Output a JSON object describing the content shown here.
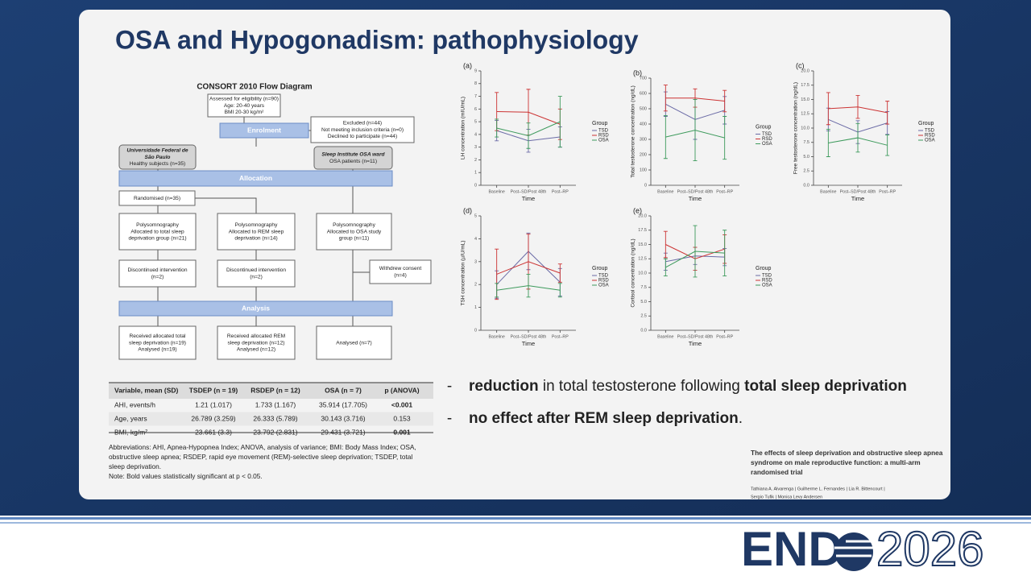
{
  "title": "OSA and Hypogonadism: pathophysiology",
  "flow": {
    "title": "CONSORT 2010 Flow Diagram",
    "nodes": [
      {
        "lines": [
          "Assessed for eligibility (n=90)",
          "Age: 20-40 years",
          "BMI 20-30 kg/m²"
        ]
      },
      {
        "lines": [
          "Enrolment"
        ]
      },
      {
        "lines": [
          "Excluded (n=44)",
          "Not meeting inclusion criteria (n=0)",
          "Declined to participate (n=44)"
        ]
      },
      {
        "lines": [
          "Universidade Federal de",
          "São Paulo",
          "Healthy subjects (n=35)"
        ]
      },
      {
        "lines": [
          "Sleep Institute OSA ward",
          "OSA patients (n=11)"
        ]
      },
      {
        "lines": [
          "Allocation"
        ]
      },
      {
        "lines": [
          "Randomised (n=35)"
        ]
      },
      {
        "lines": [
          "Polysomnography",
          "Allocated to total sleep",
          "deprivation group (n=21)"
        ]
      },
      {
        "lines": [
          "Polysomnography",
          "Allocated to REM sleep",
          "deprivation (n=14)"
        ]
      },
      {
        "lines": [
          "Polysomnography",
          "Allocated to OSA study",
          "group (n=11)"
        ]
      },
      {
        "lines": [
          "Discontinued intervention",
          "(n=2)"
        ]
      },
      {
        "lines": [
          "Discontinued intervention",
          "(n=2)"
        ]
      },
      {
        "lines": [
          "Withdrew consent",
          "(n=4)"
        ]
      },
      {
        "lines": [
          "Analysis"
        ]
      },
      {
        "lines": [
          "Received allocated total",
          "sleep deprivation (n=19)",
          "Analysed (n=19)"
        ]
      },
      {
        "lines": [
          "Received allocated REM",
          "sleep deprivation (n=12)",
          "Analysed (n=12)"
        ]
      },
      {
        "lines": [
          "Analysed (n=7)"
        ]
      }
    ]
  },
  "table": {
    "columns": [
      "Variable, mean (SD)",
      "TSDEP (n = 19)",
      "RSDEP (n = 12)",
      "OSA (n = 7)",
      "p (ANOVA)"
    ],
    "rows": [
      [
        "AHI, events/h",
        "1.21 (1.017)",
        "1.733 (1.167)",
        "35.914 (17.705)",
        "<0.001"
      ],
      [
        "Age, years",
        "26.789 (3.259)",
        "26.333 (5.789)",
        "30.143 (3.716)",
        "0.153"
      ],
      [
        "BMI, kg/m²",
        "23.661 (3.3)",
        "23.792 (2.831)",
        "29.431 (3.721)",
        "0.001"
      ]
    ],
    "abbreviations": [
      "Abbreviations: AHI, Apnea-Hypopnea Index; ANOVA, analysis of variance; BMI: Body Mass Index; OSA,",
      "obstructive sleep apnea; RSDEP, rapid eye movement (REM)-selective sleep deprivation; TSDEP, total",
      "sleep deprivation."
    ],
    "note": "Note: Bold values statistically significant at p < 0.05."
  },
  "charts": [
    {
      "type": "line",
      "panel": "(a)",
      "ylabel": "LH concentration (mIU/mL)",
      "xlabel": "Time",
      "categories": [
        "Baseline",
        "Post–SD/Post 48th",
        "Post–RP"
      ],
      "ylim": [
        0,
        9
      ],
      "yticks": [
        0,
        1,
        2,
        3,
        4,
        5,
        6,
        7,
        8,
        9
      ],
      "legend_title": "Group",
      "series": [
        {
          "name": "TSD",
          "color": "#6b6ba6",
          "values": [
            4.3,
            3.5,
            3.8
          ],
          "errors": [
            0.8,
            0.9,
            0.8
          ]
        },
        {
          "name": "RSD",
          "color": "#cc3333",
          "values": [
            5.8,
            5.75,
            4.8
          ],
          "errors": [
            1.5,
            1.8,
            1.2
          ]
        },
        {
          "name": "OSA",
          "color": "#3d9a5c",
          "values": [
            4.5,
            3.9,
            5.0
          ],
          "errors": [
            0.7,
            1.0,
            2.0
          ]
        }
      ]
    },
    {
      "type": "line",
      "panel": "(b)",
      "ylabel": "Total testosterone concentration (ng/dL)",
      "xlabel": "Time",
      "categories": [
        "Baseline",
        "Post–SD/Post 48th",
        "Post–RP"
      ],
      "ylim": [
        0,
        700
      ],
      "yticks": [
        0,
        100,
        200,
        300,
        400,
        500,
        600,
        700
      ],
      "legend_title": "Group",
      "series": [
        {
          "name": "TSD",
          "color": "#6b6ba6",
          "values": [
            530,
            430,
            490
          ],
          "errors": [
            80,
            130,
            90
          ]
        },
        {
          "name": "RSD",
          "color": "#cc3333",
          "values": [
            570,
            570,
            550
          ],
          "errors": [
            85,
            60,
            70
          ]
        },
        {
          "name": "OSA",
          "color": "#3d9a5c",
          "values": [
            315,
            360,
            310
          ],
          "errors": [
            140,
            200,
            140
          ]
        }
      ]
    },
    {
      "type": "line",
      "panel": "(c)",
      "ylabel": "Free testosterone concentration (ng/dL)",
      "xlabel": "Time",
      "categories": [
        "Baseline",
        "Post–SD/Post 48th",
        "Post–RP"
      ],
      "ylim": [
        0,
        20
      ],
      "yticks": [
        {
          "value": 0,
          "label": "0.0"
        },
        {
          "value": 2.5,
          "label": "2.5"
        },
        {
          "value": 5,
          "label": "5.0"
        },
        {
          "value": 7.5,
          "label": "7.5"
        },
        {
          "value": 10,
          "label": "10.0"
        },
        {
          "value": 12.5,
          "label": "12.5"
        },
        {
          "value": 15,
          "label": "15.0"
        },
        {
          "value": 17.5,
          "label": "17.5"
        },
        {
          "value": 20,
          "label": "20.0"
        }
      ],
      "legend_title": "Group",
      "series": [
        {
          "name": "TSD",
          "color": "#6b6ba6",
          "values": [
            11.5,
            9.3,
            10.9
          ],
          "errors": [
            2.0,
            2.0,
            2.0
          ]
        },
        {
          "name": "RSD",
          "color": "#cc3333",
          "values": [
            13.4,
            13.7,
            12.7
          ],
          "errors": [
            2.8,
            2.0,
            2.0
          ]
        },
        {
          "name": "OSA",
          "color": "#3d9a5c",
          "values": [
            7.4,
            8.3,
            7.0
          ],
          "errors": [
            2.4,
            2.5,
            1.8
          ]
        }
      ]
    },
    {
      "type": "line",
      "panel": "(d)",
      "ylabel": "TSH concentration (µIU/mL)",
      "xlabel": "Time",
      "categories": [
        "Baseline",
        "Post–SD/Post 48th",
        "Post–RP"
      ],
      "ylim": [
        0,
        5
      ],
      "yticks": [
        0,
        1,
        2,
        3,
        4,
        5
      ],
      "legend_title": "Group",
      "series": [
        {
          "name": "TSD",
          "color": "#6b6ba6",
          "values": [
            2.0,
            3.45,
            2.1
          ],
          "errors": [
            0.6,
            0.8,
            0.6
          ]
        },
        {
          "name": "RSD",
          "color": "#cc3333",
          "values": [
            2.45,
            3.0,
            2.5
          ],
          "errors": [
            1.1,
            1.2,
            0.4
          ]
        },
        {
          "name": "OSA",
          "color": "#3d9a5c",
          "values": [
            1.75,
            1.95,
            1.75
          ],
          "errors": [
            0.3,
            0.5,
            0.3
          ]
        }
      ]
    },
    {
      "type": "line",
      "panel": "(e)",
      "ylabel": "Cortisol concentration (ng/dL)",
      "xlabel": "Time",
      "categories": [
        "Baseline",
        "Post–SD/Post 48th",
        "Post–RP"
      ],
      "ylim": [
        0,
        20
      ],
      "yticks": [
        {
          "value": 0,
          "label": "0.0"
        },
        {
          "value": 2.5,
          "label": "2.5"
        },
        {
          "value": 5,
          "label": "5.0"
        },
        {
          "value": 7.5,
          "label": "7.5"
        },
        {
          "value": 10,
          "label": "10.0"
        },
        {
          "value": 12.5,
          "label": "12.5"
        },
        {
          "value": 15,
          "label": "15.0"
        },
        {
          "value": 17.5,
          "label": "17.5"
        },
        {
          "value": 20,
          "label": "20.0"
        }
      ],
      "legend_title": "Group",
      "series": [
        {
          "name": "TSD",
          "color": "#6b6ba6",
          "values": [
            12.0,
            13.0,
            12.8
          ],
          "errors": [
            1.5,
            1.5,
            1.5
          ]
        },
        {
          "name": "RSD",
          "color": "#cc3333",
          "values": [
            15.0,
            12.5,
            14.2
          ],
          "errors": [
            2.3,
            2.0,
            2.5
          ]
        },
        {
          "name": "OSA",
          "color": "#3d9a5c",
          "values": [
            11.0,
            13.8,
            13.5
          ],
          "errors": [
            1.5,
            4.5,
            4.0
          ]
        }
      ]
    }
  ],
  "bullets": [
    [
      "reduction",
      " in total testosterone following ",
      "total sleep deprivation"
    ],
    [
      "no effect after REM sleep deprivation",
      "."
    ]
  ],
  "citation": {
    "title": [
      "The effects of sleep deprivation and obstructive sleep apnea",
      "syndrome on male reproductive function: a multi-arm",
      "randomised trial"
    ],
    "authors": [
      "Tathiana A. Alvarenga  |  Guilherme L. Fernandes  |  Lia R. Bittencourt  |",
      "Sergio Tufik  |  Monica Levy Andersen"
    ]
  },
  "logo": {
    "left": "END",
    "right": "2026"
  }
}
